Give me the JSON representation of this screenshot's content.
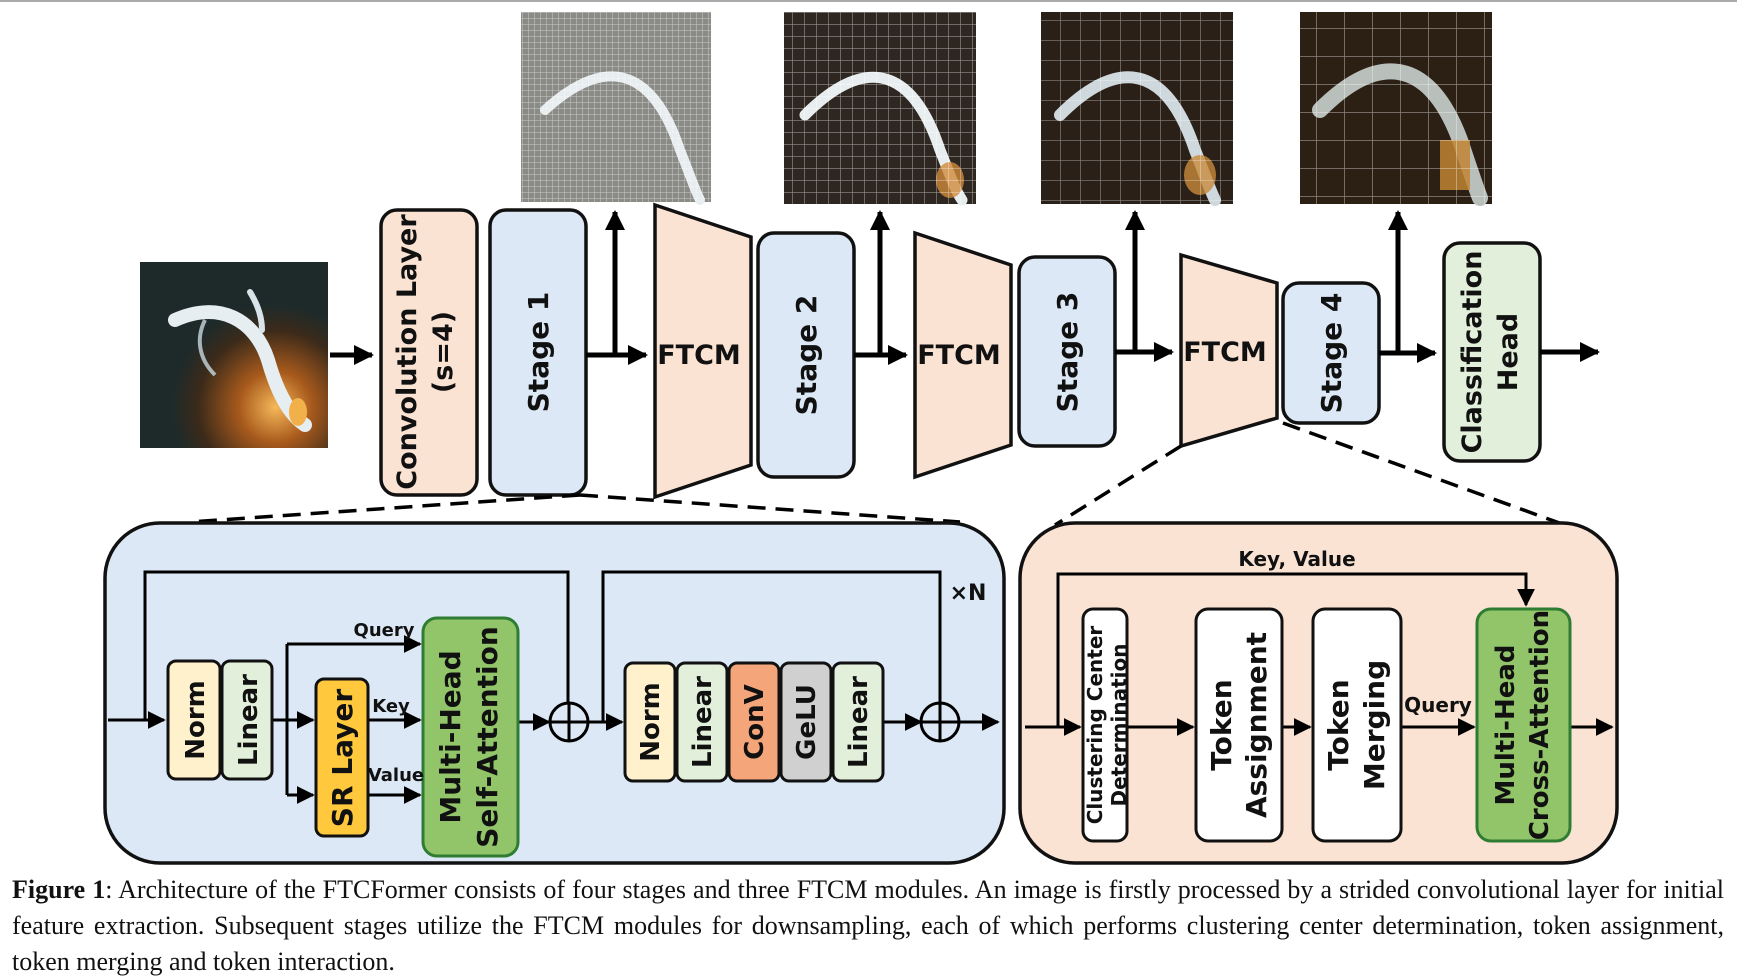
{
  "main_flow": {
    "conv_layer": [
      "Convolution Layer",
      "(s=4)"
    ],
    "stage1": "Stage 1",
    "stage2": "Stage 2",
    "stage3": "Stage 3",
    "stage4": "Stage 4",
    "ftcm1": "FTCM",
    "ftcm2": "FTCM",
    "ftcm3": "FTCM",
    "head": [
      "Classification",
      "Head"
    ]
  },
  "stage_block": {
    "norm1": "Norm",
    "linear1": "Linear",
    "sr_layer": "SR Layer",
    "query": "Query",
    "key": "Key",
    "value": "Value",
    "mhsa": [
      "Multi-Head",
      "Self-Attention"
    ],
    "norm2": "Norm",
    "linear2": "Linear",
    "conv": "ConV",
    "gelu": "GeLU",
    "linear3": "Linear",
    "repeat": "×N"
  },
  "ftcm_block": {
    "key_value": "Key, Value",
    "clustering": [
      "Clustering Center",
      "Determination"
    ],
    "token_assignment": [
      "Token",
      "Assignment"
    ],
    "token_merging": [
      "Token",
      "Merging"
    ],
    "query": "Query",
    "mhca": [
      "Multi-Head",
      "Cross-Attention"
    ]
  },
  "caption": {
    "label": "Figure 1",
    "text": ": Architecture of the FTCFormer consists of four stages and three FTCM modules. An image is firstly processed by a strided convolutional layer for initial feature extraction. Subsequent stages utilize the FTCM modules for downsampling, each of which performs clustering center determination, token assignment, token merging and token interaction."
  },
  "colors": {
    "blue_fill": "#dce8f6",
    "orange_fill": "#fbe3d4",
    "green_fill": "#92c46a",
    "light_green_fill": "#e2efda",
    "yellow_fill": "#fff1cc",
    "gold_fill": "#ffc83d",
    "conv_fill": "#f4a57a",
    "gelu_fill": "#d0d0d0"
  },
  "icons": {
    "input_image": "fish-photo-icon",
    "token_maps": "clustered-feature-map-icon",
    "sum": "circled-plus-icon"
  }
}
